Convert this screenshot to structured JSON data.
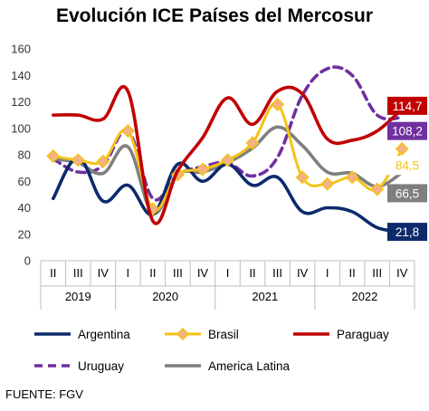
{
  "chart_data": {
    "type": "line",
    "title": "Evolución ICE Países del Mercosur",
    "xlabel": "",
    "ylabel": "",
    "ylim": [
      0,
      160
    ],
    "yticks": [
      "0",
      "20",
      "40",
      "60",
      "80",
      "100",
      "120",
      "140",
      "160"
    ],
    "grid": false,
    "legend_position": "bottom",
    "quarters": [
      "II",
      "III",
      "IV",
      "I",
      "II",
      "III",
      "IV",
      "I",
      "II",
      "III",
      "IV",
      "I",
      "II",
      "III",
      "IV"
    ],
    "years": [
      "2019",
      "2020",
      "2021",
      "2022"
    ],
    "series": [
      {
        "name": "Argentina",
        "color": "#0d2a6b",
        "values": [
          47,
          78,
          45,
          57,
          35,
          73,
          60,
          73,
          57,
          63,
          37,
          40,
          37,
          25,
          21.8
        ],
        "end_label": "21,8"
      },
      {
        "name": "Brasil",
        "color": "#f5c316",
        "marker": "diamond",
        "values": [
          79,
          76,
          75,
          98,
          39,
          65,
          69,
          76,
          89,
          118,
          63,
          58,
          63,
          54,
          84.5
        ],
        "end_label": "84,5"
      },
      {
        "name": "Paraguay",
        "color": "#c00000",
        "values": [
          110,
          110,
          107,
          128,
          30,
          68,
          93,
          123,
          103,
          128,
          126,
          92,
          91,
          98,
          114.7
        ],
        "end_label": "114,7"
      },
      {
        "name": "Uruguay",
        "color": "#7030a0",
        "dashed": true,
        "values": [
          77,
          67,
          72,
          98,
          47,
          65,
          71,
          74,
          64,
          78,
          125,
          145,
          140,
          110,
          108.2
        ],
        "end_label": "108,2"
      },
      {
        "name": "America Latina",
        "color": "#7f7f7f",
        "values": [
          77,
          74,
          66,
          86,
          36,
          65,
          67,
          74,
          85,
          101,
          87,
          67,
          66,
          56,
          66.5
        ],
        "end_label": "66,5"
      }
    ]
  },
  "source": "FUENTE: FGV"
}
